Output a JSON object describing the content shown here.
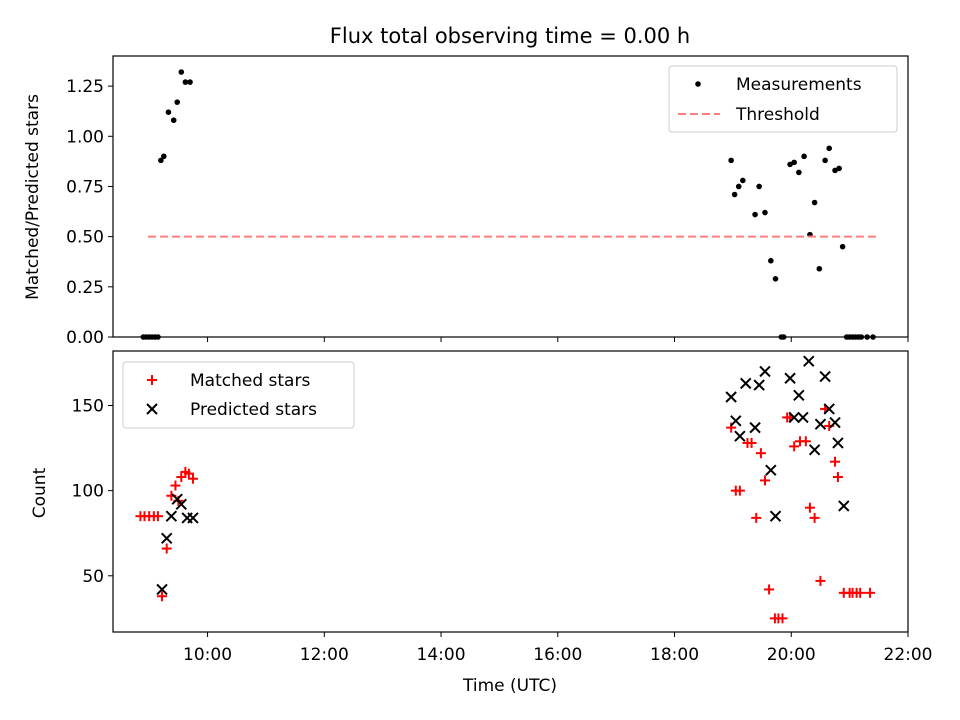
{
  "chart_data": [
    {
      "type": "scatter",
      "title": "Flux total observing time = 0.00 h",
      "xlabel": "",
      "ylabel": "Matched/Predicted stars",
      "xlim": [
        8.38,
        22.0
      ],
      "ylim": [
        0,
        1.4
      ],
      "yticks": [
        0,
        0.25,
        0.5,
        0.75,
        1.0,
        1.25
      ],
      "ytick_labels": [
        "0.00",
        "0.25",
        "0.50",
        "0.75",
        "1.00",
        "1.25"
      ],
      "xticks": [
        10,
        12,
        14,
        16,
        18,
        20,
        22
      ],
      "show_xtick_labels": false,
      "grid": false,
      "legend": {
        "position": "top-right",
        "entries": [
          "Measurements",
          "Threshold"
        ]
      },
      "series": [
        {
          "name": "Measurements",
          "marker": "dot",
          "color": "#000000",
          "x": [
            8.9,
            8.95,
            9.0,
            9.05,
            9.1,
            9.15,
            9.2,
            9.25,
            9.33,
            9.42,
            9.48,
            9.55,
            9.62,
            9.7,
            18.97,
            19.03,
            19.1,
            19.17,
            19.38,
            19.45,
            19.55,
            19.65,
            19.73,
            19.83,
            19.87,
            19.98,
            20.05,
            20.13,
            20.22,
            20.32,
            20.4,
            20.48,
            20.58,
            20.65,
            20.75,
            20.82,
            20.88,
            20.95,
            21.0,
            21.05,
            21.1,
            21.15,
            21.2,
            21.3,
            21.4
          ],
          "y": [
            0.0,
            0.0,
            0.0,
            0.0,
            0.0,
            0.0,
            0.88,
            0.9,
            1.12,
            1.08,
            1.17,
            1.32,
            1.27,
            1.27,
            0.88,
            0.71,
            0.75,
            0.78,
            0.61,
            0.75,
            0.62,
            0.38,
            0.29,
            0.0,
            0.0,
            0.86,
            0.87,
            0.82,
            0.9,
            0.51,
            0.67,
            0.34,
            0.88,
            0.94,
            0.83,
            0.84,
            0.45,
            0.0,
            0.0,
            0.0,
            0.0,
            0.0,
            0.0,
            0.0,
            0.0
          ]
        },
        {
          "name": "Threshold",
          "style": "dashed",
          "color": "#ff7f7f",
          "x": [
            8.98,
            21.45
          ],
          "y": [
            0.5,
            0.5
          ]
        }
      ]
    },
    {
      "type": "scatter",
      "title": "",
      "xlabel": "Time (UTC)",
      "ylabel": "Count",
      "xlim": [
        8.38,
        22.0
      ],
      "ylim": [
        17,
        182
      ],
      "yticks": [
        50,
        100,
        150
      ],
      "ytick_labels": [
        "50",
        "100",
        "150"
      ],
      "xticks": [
        10,
        12,
        14,
        16,
        18,
        20,
        22
      ],
      "xtick_labels": [
        "10:00",
        "12:00",
        "14:00",
        "16:00",
        "18:00",
        "20:00",
        "22:00"
      ],
      "grid": false,
      "legend": {
        "position": "top-left",
        "entries": [
          "Matched stars",
          "Predicted stars"
        ]
      },
      "series": [
        {
          "name": "Matched stars",
          "marker": "plus",
          "color": "#ff0000",
          "x": [
            8.85,
            8.92,
            9.0,
            9.08,
            9.15,
            9.22,
            9.3,
            9.38,
            9.45,
            9.5,
            9.55,
            9.62,
            9.68,
            9.75,
            18.97,
            19.05,
            19.12,
            19.25,
            19.32,
            19.4,
            19.48,
            19.55,
            19.62,
            19.72,
            19.78,
            19.85,
            19.93,
            19.98,
            20.05,
            20.15,
            20.25,
            20.32,
            20.4,
            20.5,
            20.58,
            20.65,
            20.75,
            20.8,
            20.9,
            21.0,
            21.05,
            21.12,
            21.18,
            21.35
          ],
          "y": [
            85,
            85,
            85,
            85,
            85,
            38,
            66,
            97,
            103,
            94,
            108,
            111,
            110,
            107,
            137,
            100,
            100,
            128,
            128,
            84,
            122,
            106,
            42,
            25,
            25,
            25,
            143,
            143,
            126,
            129,
            129,
            90,
            84,
            47,
            148,
            138,
            117,
            108,
            40,
            40,
            40,
            40,
            40,
            40
          ]
        },
        {
          "name": "Predicted stars",
          "marker": "x",
          "color": "#000000",
          "x": [
            9.22,
            9.3,
            9.38,
            9.48,
            9.55,
            9.65,
            9.75,
            18.97,
            19.05,
            19.12,
            19.22,
            19.38,
            19.45,
            19.55,
            19.65,
            19.73,
            19.98,
            20.05,
            20.13,
            20.2,
            20.3,
            20.4,
            20.5,
            20.58,
            20.65,
            20.75,
            20.8,
            20.9
          ],
          "y": [
            42,
            72,
            85,
            95,
            92,
            84,
            84,
            155,
            141,
            132,
            163,
            137,
            162,
            170,
            112,
            85,
            166,
            143,
            156,
            143,
            176,
            124,
            139,
            167,
            148,
            140,
            128,
            91
          ]
        }
      ]
    }
  ]
}
